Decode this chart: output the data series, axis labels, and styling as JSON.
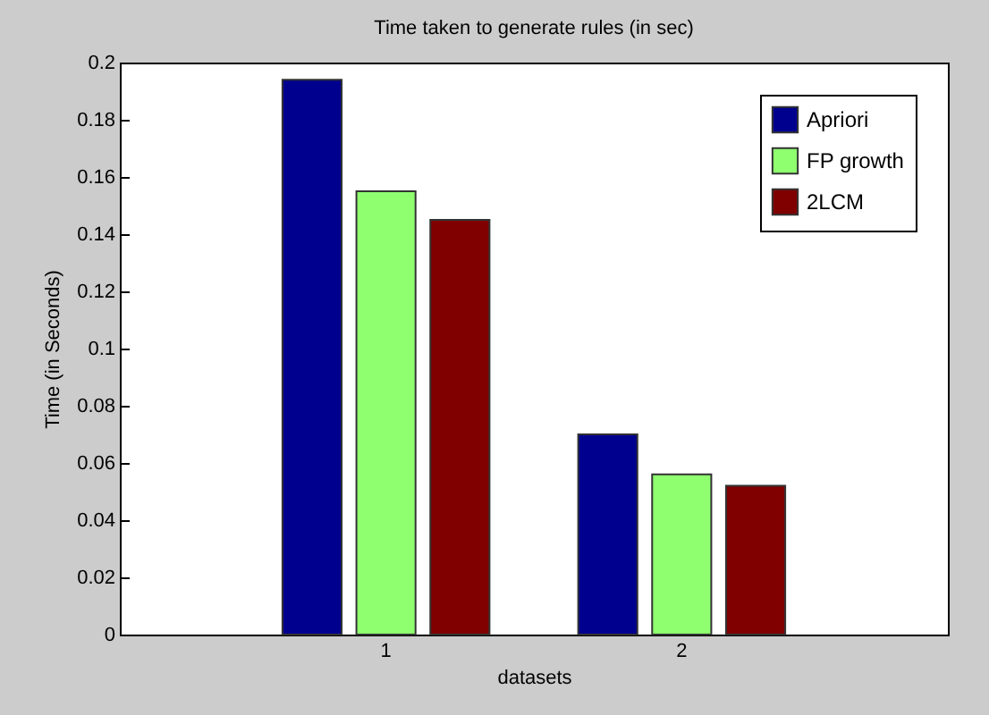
{
  "chart_data": {
    "type": "bar",
    "title": "Time taken to generate rules (in sec)",
    "xlabel": "datasets",
    "ylabel": "Time (in Seconds)",
    "categories": [
      "1",
      "2"
    ],
    "series": [
      {
        "name": "Apriori",
        "color": "#00008f",
        "values": [
          0.194,
          0.07
        ]
      },
      {
        "name": "FP growth",
        "color": "#8fff70",
        "values": [
          0.155,
          0.056
        ]
      },
      {
        "name": "2LCM",
        "color": "#800000",
        "values": [
          0.145,
          0.052
        ]
      }
    ],
    "ylim": [
      0,
      0.2
    ],
    "yticks": [
      0,
      0.02,
      0.04,
      0.06,
      0.08,
      0.1,
      0.12,
      0.14,
      0.16,
      0.18,
      0.2
    ],
    "grid": false,
    "legend": "top right"
  }
}
